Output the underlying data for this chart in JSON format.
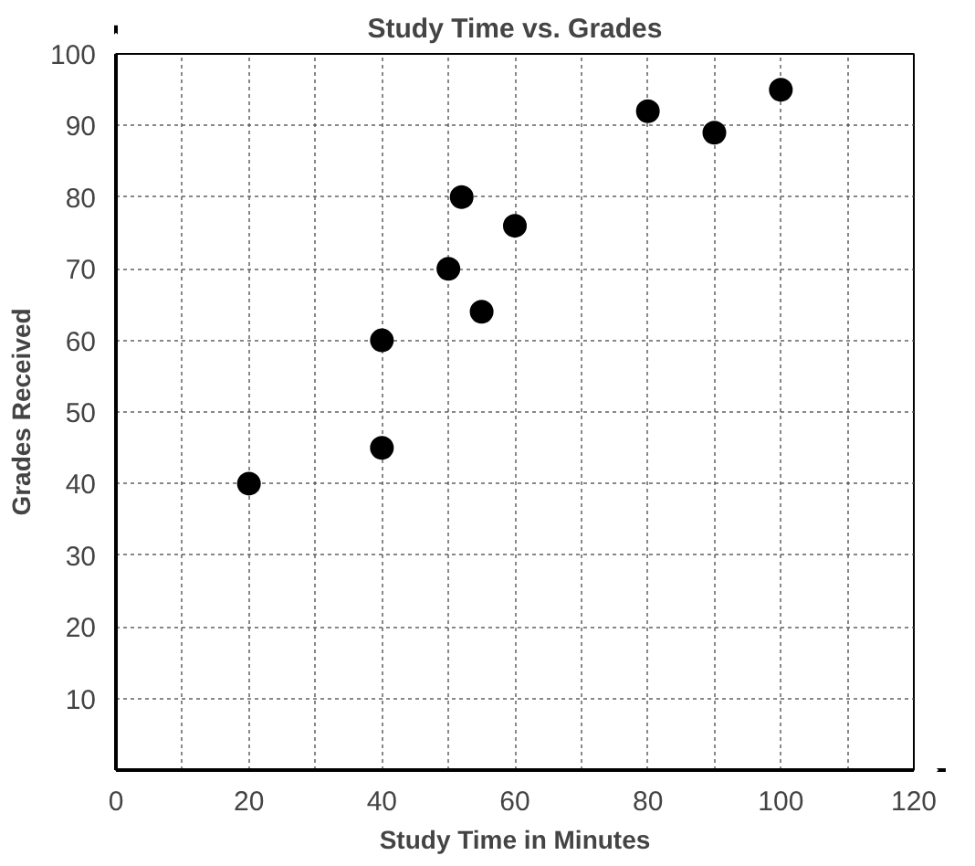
{
  "chart_data": {
    "type": "scatter",
    "title": "Study Time vs. Grades",
    "xlabel": "Study Time in Minutes",
    "ylabel": "Grades Received",
    "x": [
      20,
      40,
      40,
      50,
      52,
      55,
      60,
      80,
      90,
      100
    ],
    "values": [
      40,
      45,
      60,
      70,
      80,
      64,
      76,
      92,
      89,
      95
    ],
    "color": "#000000",
    "marker": "circle",
    "xlim": [
      0,
      120
    ],
    "ylim": [
      0,
      100
    ],
    "xticks": [
      0,
      {
        "value": 10,
        "label": null
      },
      20,
      {
        "value": 30,
        "label": null
      },
      40,
      {
        "value": 50,
        "label": null
      },
      60,
      {
        "value": 70,
        "label": null
      },
      80,
      {
        "value": 90,
        "label": null
      },
      100,
      {
        "value": 110,
        "label": null
      },
      120
    ],
    "yticks": [
      10,
      20,
      30,
      40,
      50,
      60,
      70,
      80,
      90,
      100
    ],
    "grid": true
  }
}
